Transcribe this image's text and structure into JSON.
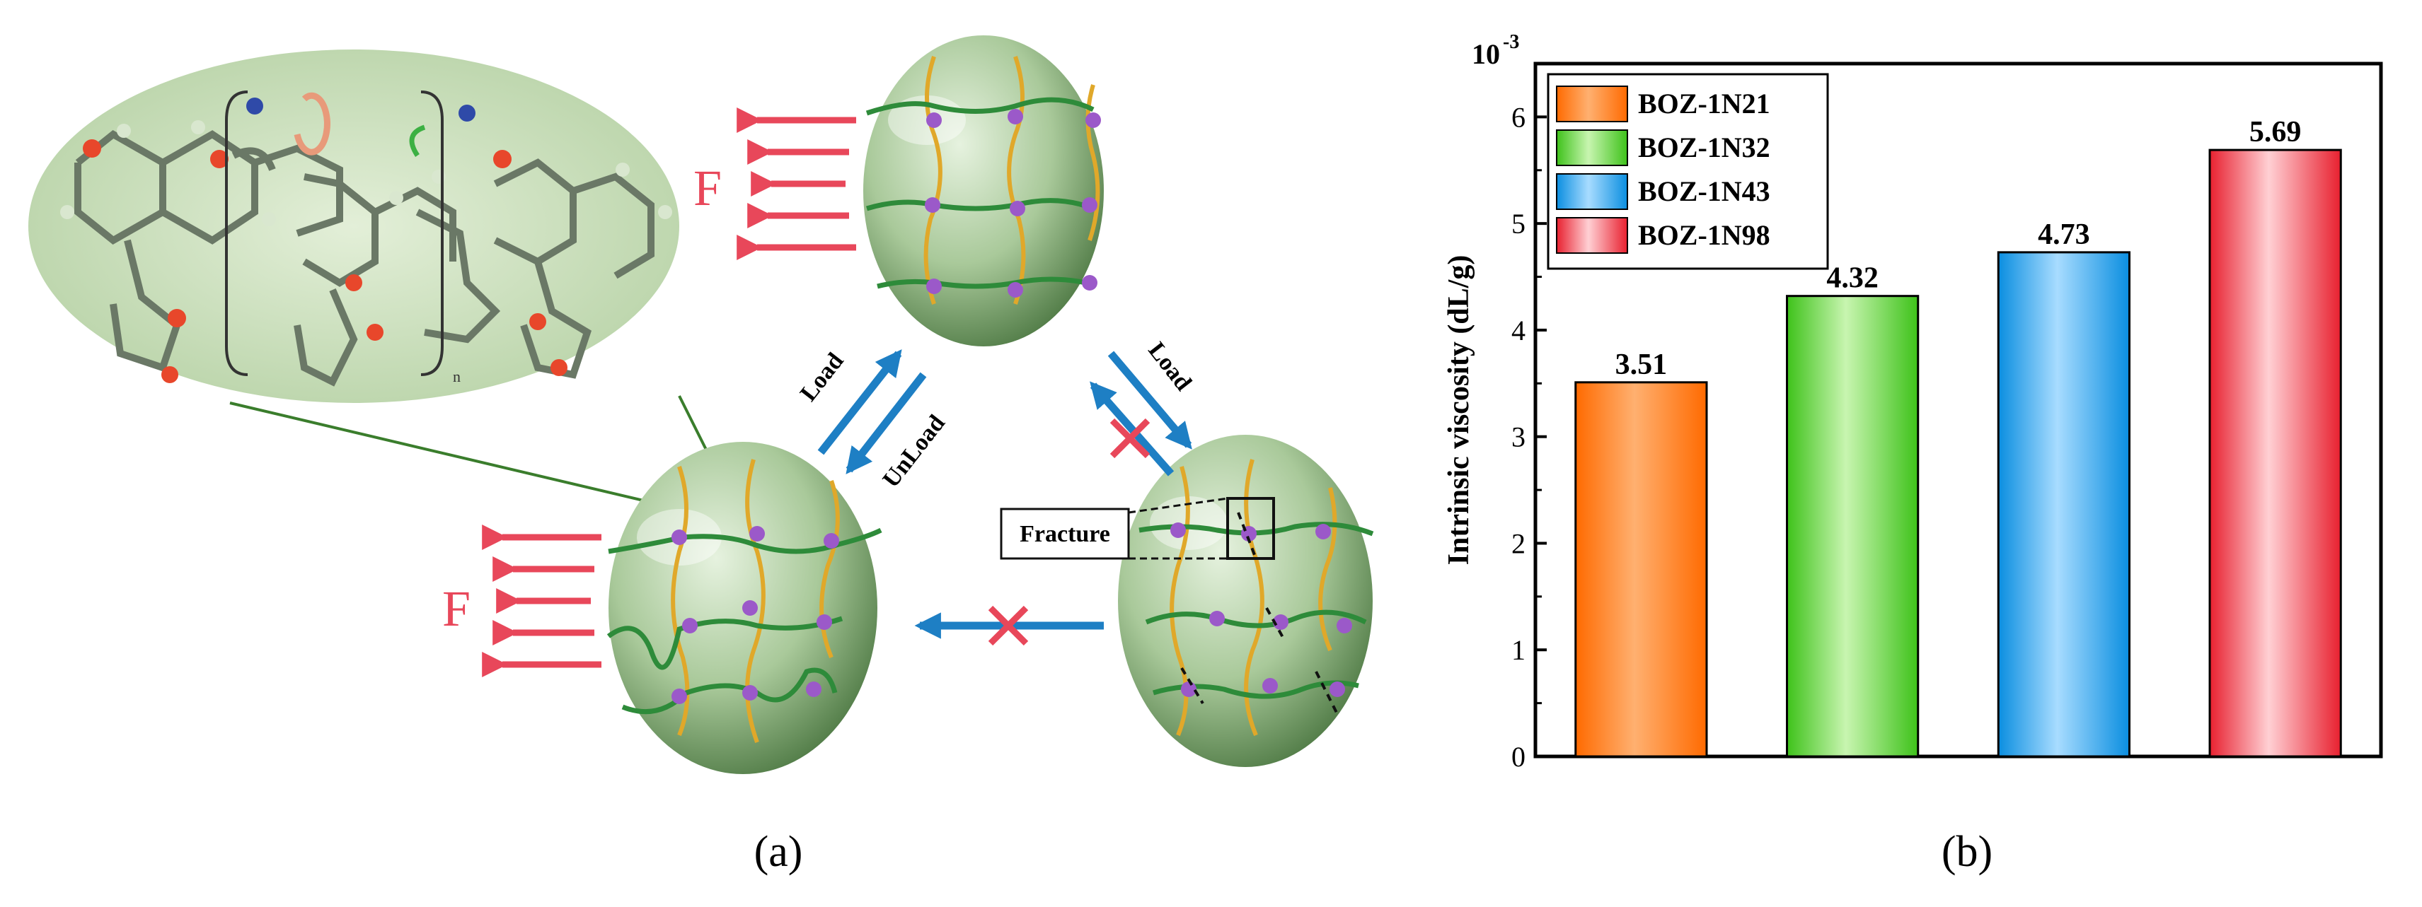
{
  "panel_a": {
    "caption": "(a)",
    "force_label_top": "F",
    "force_label_left": "F",
    "load_label_left": "Load",
    "unload_label": "UnLoad",
    "load_label_right": "Load",
    "fracture_label": "Fracture",
    "repeat_unit_subscript": "n"
  },
  "panel_b": {
    "caption": "(b)",
    "scale_exponent": "10",
    "scale_power": "-3"
  },
  "colors": {
    "arrow_red": "#e8475a",
    "arrow_blue": "#1e7fc4",
    "sphere_green": "#a9c99a",
    "chain_green": "#2e8b3a",
    "chain_gold": "#e0a82a",
    "node_purple": "#9b59c9",
    "bar_orange": "#ff7a1a",
    "bar_green": "#5cd63a",
    "bar_blue": "#1fa3f0",
    "bar_red": "#f0404f"
  },
  "chart_data": {
    "type": "bar",
    "categories": [
      "BOZ-1N21",
      "BOZ-1N32",
      "BOZ-1N43",
      "BOZ-1N98"
    ],
    "values": [
      3.51,
      4.32,
      4.73,
      5.69
    ],
    "data_labels": [
      "3.51",
      "4.32",
      "4.73",
      "5.69"
    ],
    "xlabel": "",
    "ylabel": "Intrinsic viscosity (dL/g)",
    "ylim": [
      0,
      6.5
    ],
    "yticks": [
      0,
      1,
      2,
      3,
      4,
      5,
      6
    ],
    "legend": [
      "BOZ-1N21",
      "BOZ-1N32",
      "BOZ-1N43",
      "BOZ-1N98"
    ],
    "legend_position": "top-left",
    "grid": false
  }
}
